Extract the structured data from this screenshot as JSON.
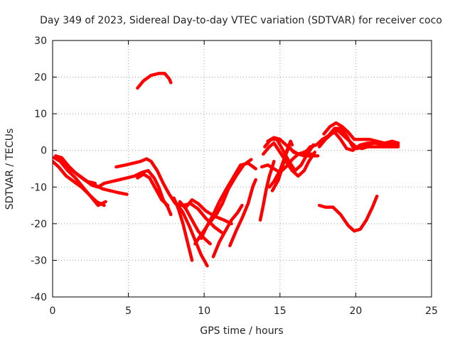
{
  "chart_data": {
    "type": "line",
    "title": "Day 349 of 2023, Sidereal Day-to-day VTEC variation (SDTVAR) for receiver coco",
    "xlabel": "GPS time / hours",
    "ylabel": "SDTVAR / TECUs",
    "xlim": [
      0,
      25
    ],
    "ylim": [
      -40,
      30
    ],
    "xticks": [
      0,
      5,
      10,
      15,
      20,
      25
    ],
    "yticks": [
      -40,
      -30,
      -20,
      -10,
      0,
      10,
      20,
      30
    ],
    "grid": true,
    "color": "#ff0000",
    "series": [
      {
        "name": "trace-1",
        "points": [
          [
            0.0,
            -3.0
          ],
          [
            0.4,
            -4.5
          ],
          [
            0.9,
            -7.0
          ],
          [
            1.4,
            -8.5
          ],
          [
            1.9,
            -10.0
          ],
          [
            2.4,
            -12.0
          ],
          [
            2.9,
            -14.0
          ],
          [
            3.4,
            -15.0
          ]
        ]
      },
      {
        "name": "trace-2",
        "points": [
          [
            0.1,
            -2.0
          ],
          [
            0.5,
            -3.0
          ],
          [
            1.0,
            -5.5
          ],
          [
            1.5,
            -7.5
          ],
          [
            2.0,
            -10.0
          ],
          [
            2.5,
            -12.5
          ],
          [
            3.0,
            -15.0
          ],
          [
            3.5,
            -14.0
          ]
        ]
      },
      {
        "name": "trace-3",
        "points": [
          [
            0.2,
            -1.5
          ],
          [
            0.6,
            -2.0
          ],
          [
            1.1,
            -4.5
          ],
          [
            1.6,
            -6.5
          ],
          [
            2.1,
            -8.0
          ],
          [
            2.6,
            -9.5
          ],
          [
            3.0,
            -10.0
          ],
          [
            3.4,
            -9.0
          ]
        ]
      },
      {
        "name": "trace-4",
        "points": [
          [
            0.3,
            -2.0
          ],
          [
            0.8,
            -3.5
          ],
          [
            1.3,
            -5.5
          ],
          [
            1.8,
            -7.0
          ],
          [
            2.3,
            -8.5
          ],
          [
            2.8,
            -9.0
          ]
        ]
      },
      {
        "name": "trace-5",
        "points": [
          [
            2.8,
            -9.5
          ],
          [
            3.3,
            -10.5
          ],
          [
            3.8,
            -11.0
          ],
          [
            4.3,
            -11.5
          ],
          [
            4.9,
            -12.0
          ]
        ]
      },
      {
        "name": "trace-6",
        "points": [
          [
            4.2,
            -4.5
          ],
          [
            4.8,
            -4.0
          ],
          [
            5.3,
            -3.5
          ],
          [
            5.8,
            -3.0
          ],
          [
            6.2,
            -2.3
          ],
          [
            6.5,
            -3.0
          ],
          [
            6.9,
            -5.5
          ],
          [
            7.3,
            -9.0
          ],
          [
            7.7,
            -12.0
          ],
          [
            8.1,
            -14.5
          ],
          [
            8.5,
            -15.0
          ]
        ]
      },
      {
        "name": "trace-7",
        "points": [
          [
            3.4,
            -9.0
          ],
          [
            3.9,
            -8.5
          ],
          [
            4.4,
            -8.0
          ],
          [
            4.9,
            -7.5
          ],
          [
            5.4,
            -7.0
          ],
          [
            5.9,
            -6.0
          ],
          [
            6.3,
            -5.5
          ],
          [
            6.7,
            -7.5
          ],
          [
            7.0,
            -10.0
          ],
          [
            7.3,
            -13.5
          ],
          [
            7.6,
            -15.5
          ],
          [
            7.8,
            -17.5
          ]
        ]
      },
      {
        "name": "trace-8",
        "points": [
          [
            5.6,
            -7.5
          ],
          [
            6.0,
            -6.5
          ],
          [
            6.4,
            -7.5
          ],
          [
            6.8,
            -10.5
          ],
          [
            7.2,
            -13.5
          ],
          [
            7.6,
            -15.0
          ]
        ]
      },
      {
        "name": "trace-9",
        "points": [
          [
            5.6,
            17.0
          ],
          [
            6.0,
            19.0
          ],
          [
            6.5,
            20.5
          ],
          [
            7.0,
            21.0
          ],
          [
            7.4,
            21.0
          ],
          [
            7.7,
            19.5
          ],
          [
            7.8,
            18.5
          ]
        ]
      },
      {
        "name": "trace-10",
        "points": [
          [
            8.0,
            -13.0
          ],
          [
            8.3,
            -16.0
          ],
          [
            8.6,
            -20.0
          ],
          [
            8.9,
            -25.0
          ],
          [
            9.2,
            -30.0
          ]
        ]
      },
      {
        "name": "trace-11",
        "points": [
          [
            8.2,
            -14.5
          ],
          [
            8.6,
            -17.0
          ],
          [
            9.0,
            -20.5
          ],
          [
            9.4,
            -24.5
          ],
          [
            9.8,
            -28.5
          ],
          [
            10.2,
            -31.5
          ]
        ]
      },
      {
        "name": "trace-12",
        "points": [
          [
            8.4,
            -14.0
          ],
          [
            8.8,
            -16.0
          ],
          [
            9.2,
            -19.0
          ],
          [
            9.6,
            -22.0
          ],
          [
            10.0,
            -24.0
          ],
          [
            10.4,
            -25.5
          ]
        ]
      },
      {
        "name": "trace-13",
        "points": [
          [
            8.6,
            -15.0
          ],
          [
            9.1,
            -14.5
          ],
          [
            9.6,
            -16.0
          ],
          [
            10.1,
            -18.5
          ],
          [
            10.7,
            -21.0
          ],
          [
            11.2,
            -22.5
          ]
        ]
      },
      {
        "name": "trace-14",
        "points": [
          [
            8.8,
            -15.5
          ],
          [
            9.2,
            -13.5
          ],
          [
            9.6,
            -14.5
          ],
          [
            10.1,
            -16.5
          ],
          [
            10.7,
            -18.0
          ],
          [
            11.3,
            -19.0
          ],
          [
            11.8,
            -20.0
          ]
        ]
      },
      {
        "name": "trace-15",
        "points": [
          [
            9.4,
            -25.5
          ],
          [
            9.8,
            -23.0
          ],
          [
            10.3,
            -20.0
          ],
          [
            10.8,
            -17.5
          ],
          [
            11.2,
            -14.5
          ],
          [
            11.6,
            -10.5
          ],
          [
            12.1,
            -7.0
          ],
          [
            12.6,
            -4.0
          ],
          [
            13.1,
            -2.5
          ]
        ]
      },
      {
        "name": "trace-16",
        "points": [
          [
            9.8,
            -24.0
          ],
          [
            10.2,
            -20.5
          ],
          [
            10.6,
            -17.5
          ],
          [
            11.0,
            -14.0
          ],
          [
            11.4,
            -11.0
          ],
          [
            11.9,
            -7.5
          ],
          [
            12.4,
            -4.0
          ],
          [
            12.9,
            -3.5
          ],
          [
            13.4,
            -5.0
          ]
        ]
      },
      {
        "name": "trace-17",
        "points": [
          [
            10.6,
            -29.0
          ],
          [
            11.0,
            -25.0
          ],
          [
            11.4,
            -22.0
          ],
          [
            11.8,
            -19.0
          ],
          [
            12.2,
            -17.0
          ],
          [
            12.5,
            -15.0
          ]
        ]
      },
      {
        "name": "trace-18",
        "points": [
          [
            11.7,
            -26.0
          ],
          [
            12.1,
            -22.0
          ],
          [
            12.5,
            -18.5
          ],
          [
            12.9,
            -14.5
          ],
          [
            13.2,
            -10.0
          ],
          [
            13.4,
            -8.0
          ]
        ]
      },
      {
        "name": "trace-19",
        "points": [
          [
            13.7,
            -19.0
          ],
          [
            13.9,
            -15.0
          ],
          [
            14.1,
            -10.5
          ],
          [
            14.3,
            -7.0
          ],
          [
            14.5,
            -4.5
          ],
          [
            14.6,
            -3.0
          ]
        ]
      },
      {
        "name": "trace-20",
        "points": [
          [
            13.8,
            -4.5
          ],
          [
            14.2,
            -4.0
          ],
          [
            14.6,
            -5.0
          ],
          [
            15.0,
            -6.0
          ],
          [
            15.4,
            -4.5
          ],
          [
            15.8,
            -2.5
          ],
          [
            16.2,
            -1.0
          ],
          [
            16.6,
            -0.5
          ],
          [
            17.0,
            0.5
          ],
          [
            17.3,
            1.5
          ]
        ]
      },
      {
        "name": "trace-21",
        "points": [
          [
            13.9,
            -1.0
          ],
          [
            14.3,
            1.0
          ],
          [
            14.6,
            2.0
          ],
          [
            15.0,
            -0.5
          ],
          [
            15.4,
            -3.0
          ],
          [
            15.8,
            -5.5
          ],
          [
            16.2,
            -7.0
          ],
          [
            16.6,
            -5.5
          ],
          [
            16.9,
            -3.0
          ],
          [
            17.3,
            -0.5
          ]
        ]
      },
      {
        "name": "trace-22",
        "points": [
          [
            14.0,
            1.0
          ],
          [
            14.4,
            3.0
          ],
          [
            14.8,
            3.0
          ],
          [
            15.2,
            0.0
          ],
          [
            15.6,
            -3.0
          ],
          [
            16.0,
            -5.5
          ],
          [
            16.4,
            -4.0
          ],
          [
            16.8,
            -1.0
          ],
          [
            17.2,
            1.5
          ]
        ]
      },
      {
        "name": "trace-23",
        "points": [
          [
            14.2,
            2.5
          ],
          [
            14.6,
            3.5
          ],
          [
            15.0,
            3.0
          ],
          [
            15.4,
            1.5
          ],
          [
            15.8,
            0.0
          ],
          [
            16.2,
            -1.0
          ],
          [
            16.6,
            -1.5
          ],
          [
            17.0,
            -1.5
          ],
          [
            17.5,
            -1.5
          ]
        ]
      },
      {
        "name": "trace-24",
        "points": [
          [
            14.3,
            -10.0
          ],
          [
            14.6,
            -8.5
          ],
          [
            15.0,
            -5.5
          ],
          [
            15.3,
            -2.0
          ],
          [
            15.5,
            0.5
          ],
          [
            15.7,
            2.5
          ],
          [
            15.8,
            1.5
          ]
        ]
      },
      {
        "name": "trace-25",
        "points": [
          [
            14.5,
            -11.0
          ],
          [
            14.9,
            -8.0
          ],
          [
            15.2,
            -4.0
          ],
          [
            15.4,
            -1.0
          ],
          [
            15.6,
            1.0
          ],
          [
            15.9,
            -0.5
          ],
          [
            16.3,
            -1.0
          ],
          [
            16.7,
            -1.0
          ],
          [
            17.1,
            -1.0
          ]
        ]
      },
      {
        "name": "trace-26",
        "points": [
          [
            16.6,
            -1.0
          ],
          [
            17.0,
            1.0
          ],
          [
            17.4,
            1.5
          ],
          [
            17.8,
            3.0
          ],
          [
            18.2,
            4.0
          ],
          [
            18.6,
            5.0
          ],
          [
            19.0,
            3.0
          ],
          [
            19.4,
            0.5
          ],
          [
            19.8,
            0.0
          ],
          [
            20.3,
            1.5
          ],
          [
            20.8,
            2.0
          ],
          [
            21.3,
            2.0
          ],
          [
            21.8,
            1.5
          ],
          [
            22.3,
            1.5
          ],
          [
            22.8,
            1.5
          ]
        ]
      },
      {
        "name": "trace-27",
        "points": [
          [
            17.6,
            1.0
          ],
          [
            18.0,
            3.0
          ],
          [
            18.4,
            4.5
          ],
          [
            18.8,
            5.5
          ],
          [
            19.2,
            4.0
          ],
          [
            19.6,
            2.5
          ],
          [
            20.0,
            1.0
          ],
          [
            20.4,
            0.5
          ],
          [
            20.8,
            1.0
          ],
          [
            21.4,
            1.0
          ],
          [
            22.0,
            1.0
          ],
          [
            22.8,
            1.0
          ]
        ]
      },
      {
        "name": "trace-28",
        "points": [
          [
            17.8,
            2.5
          ],
          [
            18.2,
            4.0
          ],
          [
            18.6,
            6.0
          ],
          [
            19.0,
            6.0
          ],
          [
            19.4,
            4.0
          ],
          [
            19.8,
            1.0
          ],
          [
            20.1,
            0.5
          ],
          [
            20.6,
            1.5
          ],
          [
            21.2,
            2.0
          ],
          [
            21.8,
            2.0
          ],
          [
            22.4,
            2.0
          ],
          [
            22.8,
            2.0
          ]
        ]
      },
      {
        "name": "trace-29",
        "points": [
          [
            17.9,
            4.5
          ],
          [
            18.3,
            6.5
          ],
          [
            18.7,
            7.5
          ],
          [
            19.1,
            6.5
          ],
          [
            19.5,
            5.0
          ],
          [
            19.9,
            3.0
          ],
          [
            20.4,
            3.0
          ],
          [
            20.9,
            3.0
          ],
          [
            21.4,
            2.5
          ],
          [
            21.9,
            2.0
          ],
          [
            22.4,
            2.5
          ],
          [
            22.8,
            2.0
          ]
        ]
      },
      {
        "name": "trace-30",
        "points": [
          [
            17.6,
            -15.0
          ],
          [
            18.0,
            -15.5
          ],
          [
            18.5,
            -15.5
          ],
          [
            19.0,
            -17.5
          ],
          [
            19.5,
            -20.5
          ],
          [
            19.9,
            -22.0
          ],
          [
            20.3,
            -21.5
          ],
          [
            20.7,
            -19.0
          ],
          [
            21.1,
            -15.5
          ],
          [
            21.4,
            -12.5
          ]
        ]
      }
    ]
  }
}
